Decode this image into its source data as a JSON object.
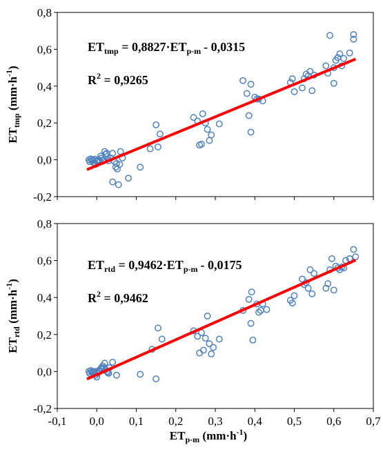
{
  "chart_data": [
    {
      "type": "scatter",
      "panel": "top",
      "ylabel": {
        "main": "ET",
        "sub": "tmp",
        "unit_pre": " (mm",
        "dot": "·",
        "unit_h": "h",
        "sup": "-1",
        "unit_post": ")"
      },
      "xlim": [
        -0.1,
        0.7
      ],
      "ylim": [
        -0.2,
        0.8
      ],
      "y_ticks": [
        "-0,2",
        "0,0",
        "0,2",
        "0,4",
        "0,6",
        "0,8"
      ],
      "equation": {
        "lhs": "ET",
        "lhs_sub": "tmp",
        "mid": " = 0,8827",
        "dot": "·",
        "var": "ET",
        "var_sub": "p-m",
        "tail": "- 0,0315"
      },
      "r2": {
        "r": "R",
        "sup": "2",
        "value": " = 0,9265"
      },
      "trendline": {
        "slope": 0.8827,
        "intercept": -0.0315,
        "x_range": [
          -0.025,
          0.655
        ],
        "color": "#ff0000"
      },
      "marker_color": "#4f81bd",
      "grid": false,
      "points": [
        [
          -0.02,
          0.0
        ],
        [
          -0.018,
          -0.01
        ],
        [
          -0.015,
          0.005
        ],
        [
          -0.012,
          -0.005
        ],
        [
          -0.01,
          0.0
        ],
        [
          -0.008,
          -0.015
        ],
        [
          -0.005,
          0.003
        ],
        [
          -0.003,
          -0.025
        ],
        [
          0.0,
          -0.01
        ],
        [
          0.002,
          -0.005
        ],
        [
          0.005,
          0.0
        ],
        [
          0.008,
          -0.01
        ],
        [
          0.01,
          0.02
        ],
        [
          0.012,
          0.01
        ],
        [
          0.015,
          0.0
        ],
        [
          0.018,
          -0.005
        ],
        [
          0.02,
          0.045
        ],
        [
          0.022,
          0.03
        ],
        [
          0.025,
          0.035
        ],
        [
          0.028,
          0.005
        ],
        [
          0.03,
          -0.005
        ],
        [
          0.035,
          0.01
        ],
        [
          0.04,
          0.035
        ],
        [
          0.04,
          -0.12
        ],
        [
          0.045,
          -0.01
        ],
        [
          0.048,
          -0.04
        ],
        [
          0.05,
          -0.02
        ],
        [
          0.052,
          -0.05
        ],
        [
          0.055,
          -0.135
        ],
        [
          0.058,
          -0.025
        ],
        [
          0.06,
          0.045
        ],
        [
          0.065,
          0.01
        ],
        [
          0.08,
          -0.1
        ],
        [
          0.11,
          -0.04
        ],
        [
          0.135,
          0.06
        ],
        [
          0.15,
          0.19
        ],
        [
          0.155,
          0.07
        ],
        [
          0.16,
          0.14
        ],
        [
          0.245,
          0.23
        ],
        [
          0.255,
          0.21
        ],
        [
          0.26,
          0.08
        ],
        [
          0.265,
          0.085
        ],
        [
          0.268,
          0.25
        ],
        [
          0.275,
          0.2
        ],
        [
          0.28,
          0.165
        ],
        [
          0.285,
          0.105
        ],
        [
          0.29,
          0.135
        ],
        [
          0.31,
          0.195
        ],
        [
          0.37,
          0.43
        ],
        [
          0.38,
          0.36
        ],
        [
          0.385,
          0.24
        ],
        [
          0.39,
          0.41
        ],
        [
          0.39,
          0.15
        ],
        [
          0.4,
          0.34
        ],
        [
          0.405,
          0.33
        ],
        [
          0.41,
          0.33
        ],
        [
          0.42,
          0.32
        ],
        [
          0.49,
          0.42
        ],
        [
          0.495,
          0.44
        ],
        [
          0.5,
          0.37
        ],
        [
          0.52,
          0.39
        ],
        [
          0.525,
          0.44
        ],
        [
          0.53,
          0.465
        ],
        [
          0.535,
          0.455
        ],
        [
          0.54,
          0.48
        ],
        [
          0.545,
          0.375
        ],
        [
          0.55,
          0.46
        ],
        [
          0.58,
          0.51
        ],
        [
          0.585,
          0.47
        ],
        [
          0.59,
          0.675
        ],
        [
          0.6,
          0.415
        ],
        [
          0.6,
          0.5
        ],
        [
          0.605,
          0.54
        ],
        [
          0.61,
          0.555
        ],
        [
          0.615,
          0.575
        ],
        [
          0.62,
          0.51
        ],
        [
          0.625,
          0.55
        ],
        [
          0.64,
          0.58
        ],
        [
          0.65,
          0.68
        ],
        [
          0.65,
          0.655
        ]
      ]
    },
    {
      "type": "scatter",
      "panel": "bottom",
      "ylabel": {
        "main": "ET",
        "sub": "rtd",
        "unit_pre": " (mm",
        "dot": "·",
        "unit_h": "h",
        "sup": "-1",
        "unit_post": ")"
      },
      "xlabel": {
        "main": "ET",
        "sub": "p-m",
        "unit_pre": " (mm",
        "dot": "·",
        "unit_h": "h",
        "sup": "-1",
        "unit_post": ")"
      },
      "xlim": [
        -0.1,
        0.7
      ],
      "ylim": [
        -0.2,
        0.8
      ],
      "x_ticks": [
        "-0,1",
        "0,0",
        "0,1",
        "0,2",
        "0,3",
        "0,4",
        "0,5",
        "0,6",
        "0,7"
      ],
      "y_ticks": [
        "-0,2",
        "0,0",
        "0,2",
        "0,4",
        "0,6",
        "0,8"
      ],
      "equation": {
        "lhs": "ET",
        "lhs_sub": "rtd",
        "mid": " = 0,9462",
        "dot": "·",
        "var": "ET",
        "var_sub": "p-m",
        "tail": "- 0,0175"
      },
      "r2": {
        "r": "R",
        "sup": "2",
        "value": " = 0,9462"
      },
      "trendline": {
        "slope": 0.9462,
        "intercept": -0.0175,
        "x_range": [
          -0.025,
          0.655
        ],
        "color": "#ff0000"
      },
      "marker_color": "#4f81bd",
      "grid": false,
      "points": [
        [
          -0.02,
          0.0
        ],
        [
          -0.018,
          -0.01
        ],
        [
          -0.015,
          0.005
        ],
        [
          -0.012,
          -0.005
        ],
        [
          -0.01,
          0.0
        ],
        [
          -0.008,
          -0.012
        ],
        [
          -0.005,
          0.0
        ],
        [
          -0.003,
          -0.02
        ],
        [
          0.0,
          -0.03
        ],
        [
          0.002,
          -0.01
        ],
        [
          0.005,
          0.005
        ],
        [
          0.008,
          0.0
        ],
        [
          0.01,
          0.015
        ],
        [
          0.012,
          0.02
        ],
        [
          0.015,
          0.03
        ],
        [
          0.018,
          0.02
        ],
        [
          0.02,
          0.045
        ],
        [
          0.022,
          0.01
        ],
        [
          0.025,
          0.0
        ],
        [
          0.028,
          -0.005
        ],
        [
          0.03,
          -0.01
        ],
        [
          0.032,
          0.02
        ],
        [
          0.04,
          0.05
        ],
        [
          0.05,
          -0.02
        ],
        [
          0.11,
          -0.015
        ],
        [
          0.14,
          0.12
        ],
        [
          0.15,
          -0.04
        ],
        [
          0.155,
          0.235
        ],
        [
          0.165,
          0.175
        ],
        [
          0.245,
          0.22
        ],
        [
          0.255,
          0.19
        ],
        [
          0.26,
          0.1
        ],
        [
          0.265,
          0.21
        ],
        [
          0.27,
          0.115
        ],
        [
          0.275,
          0.18
        ],
        [
          0.28,
          0.3
        ],
        [
          0.285,
          0.15
        ],
        [
          0.29,
          0.095
        ],
        [
          0.295,
          0.13
        ],
        [
          0.31,
          0.175
        ],
        [
          0.37,
          0.33
        ],
        [
          0.385,
          0.39
        ],
        [
          0.39,
          0.26
        ],
        [
          0.392,
          0.43
        ],
        [
          0.395,
          0.17
        ],
        [
          0.405,
          0.365
        ],
        [
          0.41,
          0.32
        ],
        [
          0.415,
          0.33
        ],
        [
          0.42,
          0.365
        ],
        [
          0.43,
          0.335
        ],
        [
          0.49,
          0.385
        ],
        [
          0.495,
          0.37
        ],
        [
          0.5,
          0.41
        ],
        [
          0.52,
          0.5
        ],
        [
          0.525,
          0.47
        ],
        [
          0.53,
          0.48
        ],
        [
          0.535,
          0.45
        ],
        [
          0.54,
          0.55
        ],
        [
          0.545,
          0.42
        ],
        [
          0.55,
          0.53
        ],
        [
          0.58,
          0.45
        ],
        [
          0.585,
          0.475
        ],
        [
          0.59,
          0.55
        ],
        [
          0.595,
          0.61
        ],
        [
          0.6,
          0.44
        ],
        [
          0.605,
          0.57
        ],
        [
          0.61,
          0.56
        ],
        [
          0.615,
          0.55
        ],
        [
          0.62,
          0.565
        ],
        [
          0.625,
          0.56
        ],
        [
          0.63,
          0.6
        ],
        [
          0.64,
          0.61
        ],
        [
          0.65,
          0.66
        ],
        [
          0.655,
          0.62
        ]
      ]
    }
  ]
}
